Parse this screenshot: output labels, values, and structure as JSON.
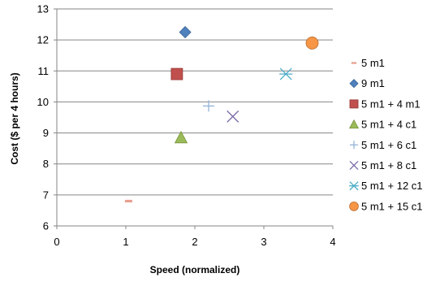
{
  "chart_data": {
    "type": "scatter",
    "title": "",
    "xlabel": "Speed (normalized)",
    "ylabel": "Cost ($ per 4 hours)",
    "xlim": [
      0,
      4
    ],
    "ylim": [
      6,
      13
    ],
    "x_ticks": [
      "0",
      "1",
      "2",
      "3",
      "4"
    ],
    "y_ticks": [
      "6",
      "7",
      "8",
      "9",
      "10",
      "11",
      "12",
      "13"
    ],
    "grid": "horizontal",
    "legend_position": "right",
    "series": [
      {
        "name": "5 m1",
        "marker": "dash",
        "color": "#E8A090",
        "points": [
          {
            "x": 1.04,
            "y": 6.8
          }
        ]
      },
      {
        "name": "9 m1",
        "marker": "diamond",
        "color": "#4F81BD",
        "points": [
          {
            "x": 1.86,
            "y": 12.25
          }
        ]
      },
      {
        "name": "5 m1 + 4 m1",
        "marker": "square",
        "color": "#C0504D",
        "points": [
          {
            "x": 1.74,
            "y": 10.9
          }
        ]
      },
      {
        "name": "5 m1 + 4 c1",
        "marker": "triangle",
        "color": "#9BBB59",
        "points": [
          {
            "x": 1.8,
            "y": 8.85
          }
        ]
      },
      {
        "name": "5 m1 + 6 c1",
        "marker": "plus",
        "color": "#95B3D7",
        "points": [
          {
            "x": 2.2,
            "y": 9.87
          }
        ]
      },
      {
        "name": "5 m1 + 8 c1",
        "marker": "x",
        "color": "#7B6AA8",
        "points": [
          {
            "x": 2.55,
            "y": 9.53
          }
        ]
      },
      {
        "name": "5 m1 + 12 c1",
        "marker": "star",
        "color": "#4BACC6",
        "points": [
          {
            "x": 3.32,
            "y": 10.9
          }
        ]
      },
      {
        "name": "5 m1 + 15 c1",
        "marker": "circle",
        "color": "#F79646",
        "points": [
          {
            "x": 3.7,
            "y": 11.9
          }
        ]
      }
    ]
  }
}
